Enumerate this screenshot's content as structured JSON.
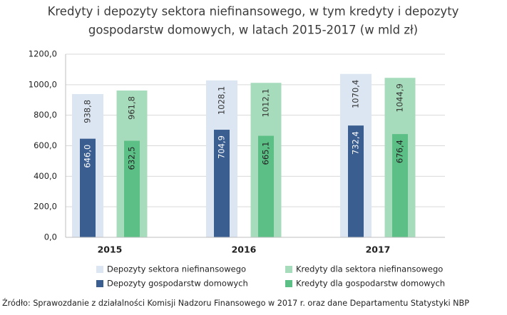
{
  "chart_data": {
    "type": "bar",
    "title": [
      "Kredyty i depozyty sektora niefinansowego, w tym kredyty i depozyty",
      "gospodarstw domowych, w latach 2015-2017 (w mld zł)"
    ],
    "categories": [
      "2015",
      "2016",
      "2017"
    ],
    "series": [
      {
        "name": "Depozyty sektora niefinansowego",
        "color": "#dce6f2",
        "values": [
          938.8,
          1028.1,
          1070.4
        ],
        "value_labels": [
          "938,8",
          "1028,1",
          "1070,4"
        ]
      },
      {
        "name": "Kredyty dla sektora niefinansowego",
        "color": "#a6dcbb",
        "values": [
          961.8,
          1012.1,
          1044.9
        ],
        "value_labels": [
          "961,8",
          "1012,1",
          "1044,9"
        ]
      },
      {
        "name": "Depozyty gospodarstw domowych",
        "color": "#3b5e91",
        "values": [
          646.0,
          704.9,
          732.4
        ],
        "value_labels": [
          "646,0",
          "704,9",
          "732,4"
        ]
      },
      {
        "name": "Kredyty dla gospodarstw domowych",
        "color": "#5cbf86",
        "values": [
          632.5,
          665.1,
          676.4
        ],
        "value_labels": [
          "632,5",
          "665,1",
          "676,4"
        ]
      }
    ],
    "ylim": [
      0,
      1200
    ],
    "yticks": [
      {
        "value": 0,
        "label": "0,0"
      },
      {
        "value": 200,
        "label": "200,0"
      },
      {
        "value": 400,
        "label": "400,0"
      },
      {
        "value": 600,
        "label": "600,0"
      },
      {
        "value": 800,
        "label": "800,0"
      },
      {
        "value": 1000,
        "label": "1000,0"
      },
      {
        "value": 1200,
        "label": "1200,0"
      }
    ],
    "grid": true,
    "source": "Źródło: Sprawozdanie z działalności Komisji Nadzoru Finansowego w 2017 r. oraz dane Departamentu Statystyki NBP"
  }
}
